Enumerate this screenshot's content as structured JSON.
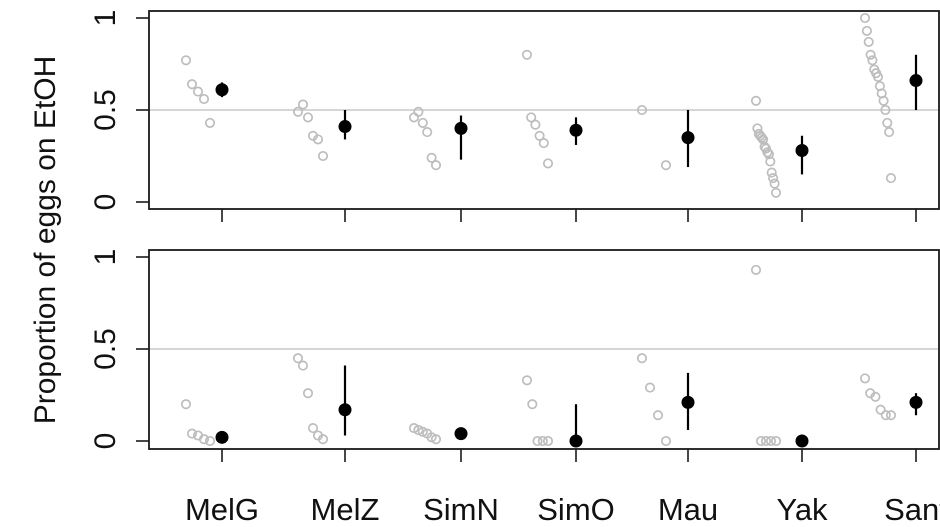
{
  "chart_data": {
    "type": "scatter",
    "ylabel": "Proportion of eggs on EtOH",
    "categories": [
      "MelG",
      "MelZ",
      "SimN",
      "SimO",
      "Mau",
      "Yak",
      "Sant"
    ],
    "ylim": [
      0,
      1
    ],
    "yticks": [
      0,
      0.5,
      1
    ],
    "ytick_labels": [
      "0",
      "0.5",
      "1"
    ],
    "reference_line": 0.5,
    "grid": false,
    "colors": {
      "raw_points": "#bdbdbd",
      "summary": "#000000",
      "reference_line": "#c8c8c8"
    },
    "panels": [
      {
        "points": [
          [
            0.77,
            0.64,
            0.6,
            0.56,
            0.43
          ],
          [
            0.49,
            0.53,
            0.46,
            0.36,
            0.34,
            0.25
          ],
          [
            0.46,
            0.49,
            0.43,
            0.38,
            0.24,
            0.2
          ],
          [
            0.8,
            0.46,
            0.42,
            0.36,
            0.32,
            0.21
          ],
          [
            0.5,
            0.2
          ],
          [
            0.55,
            0.4,
            0.37,
            0.36,
            0.35,
            0.34,
            0.3,
            0.29,
            0.27,
            0.26,
            0.22,
            0.16,
            0.13,
            0.1,
            0.05
          ],
          [
            1.0,
            0.93,
            0.87,
            0.8,
            0.77,
            0.72,
            0.7,
            0.68,
            0.63,
            0.59,
            0.55,
            0.5,
            0.43,
            0.38,
            0.13
          ]
        ],
        "means": [
          0.61,
          0.41,
          0.4,
          0.39,
          0.35,
          0.28,
          0.66
        ],
        "error_low": [
          0.57,
          0.34,
          0.23,
          0.31,
          0.19,
          0.15,
          0.5
        ],
        "error_high": [
          0.65,
          0.5,
          0.47,
          0.46,
          0.5,
          0.36,
          0.8
        ]
      },
      {
        "points": [
          [
            0.2,
            0.04,
            0.03,
            0.01,
            0.0
          ],
          [
            0.45,
            0.41,
            0.26,
            0.07,
            0.03,
            0.01
          ],
          [
            0.07,
            0.06,
            0.05,
            0.04,
            0.02,
            0.01
          ],
          [
            0.33,
            0.2,
            0.0,
            0.0,
            0.0
          ],
          [
            0.45,
            0.29,
            0.14,
            0.0
          ],
          [
            0.93,
            0.0,
            0.0,
            0.0,
            0.0
          ],
          [
            0.34,
            0.26,
            0.24,
            0.17,
            0.14,
            0.14
          ]
        ],
        "means": [
          0.02,
          0.17,
          0.04,
          0.0,
          0.21,
          0.0,
          0.21
        ],
        "error_low": [
          0.02,
          0.03,
          0.03,
          0.0,
          0.06,
          0.0,
          0.14
        ],
        "error_high": [
          0.03,
          0.41,
          0.05,
          0.2,
          0.37,
          0.01,
          0.26
        ]
      }
    ]
  }
}
